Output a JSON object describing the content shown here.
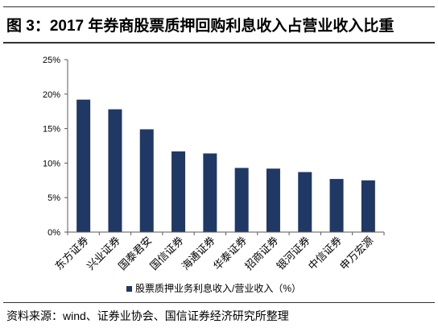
{
  "colors": {
    "bar": "#1f3864"
  },
  "source": "资料来源：wind、证券业协会、国信证券经济研究所整理",
  "chart_data": {
    "type": "bar",
    "title": "图 3：2017 年券商股票质押回购利息收入占营业收入比重",
    "xlabel": "",
    "ylabel": "",
    "categories": [
      "东方证券",
      "兴业证券",
      "国泰君安",
      "国信证券",
      "海通证券",
      "华泰证券",
      "招商证券",
      "银河证券",
      "中信证券",
      "申万宏源"
    ],
    "series": [
      {
        "name": "股票质押业务利息收入/营业收入（%）",
        "values": [
          19.2,
          17.8,
          14.9,
          11.7,
          11.4,
          9.3,
          9.2,
          8.7,
          7.7,
          7.5
        ]
      }
    ],
    "ylim": [
      0,
      25
    ],
    "yticks": [
      0,
      5,
      10,
      15,
      20,
      25
    ],
    "ytick_labels": [
      "0%",
      "5%",
      "10%",
      "15%",
      "20%",
      "25%"
    ],
    "grid": false,
    "legend": "bottom"
  }
}
